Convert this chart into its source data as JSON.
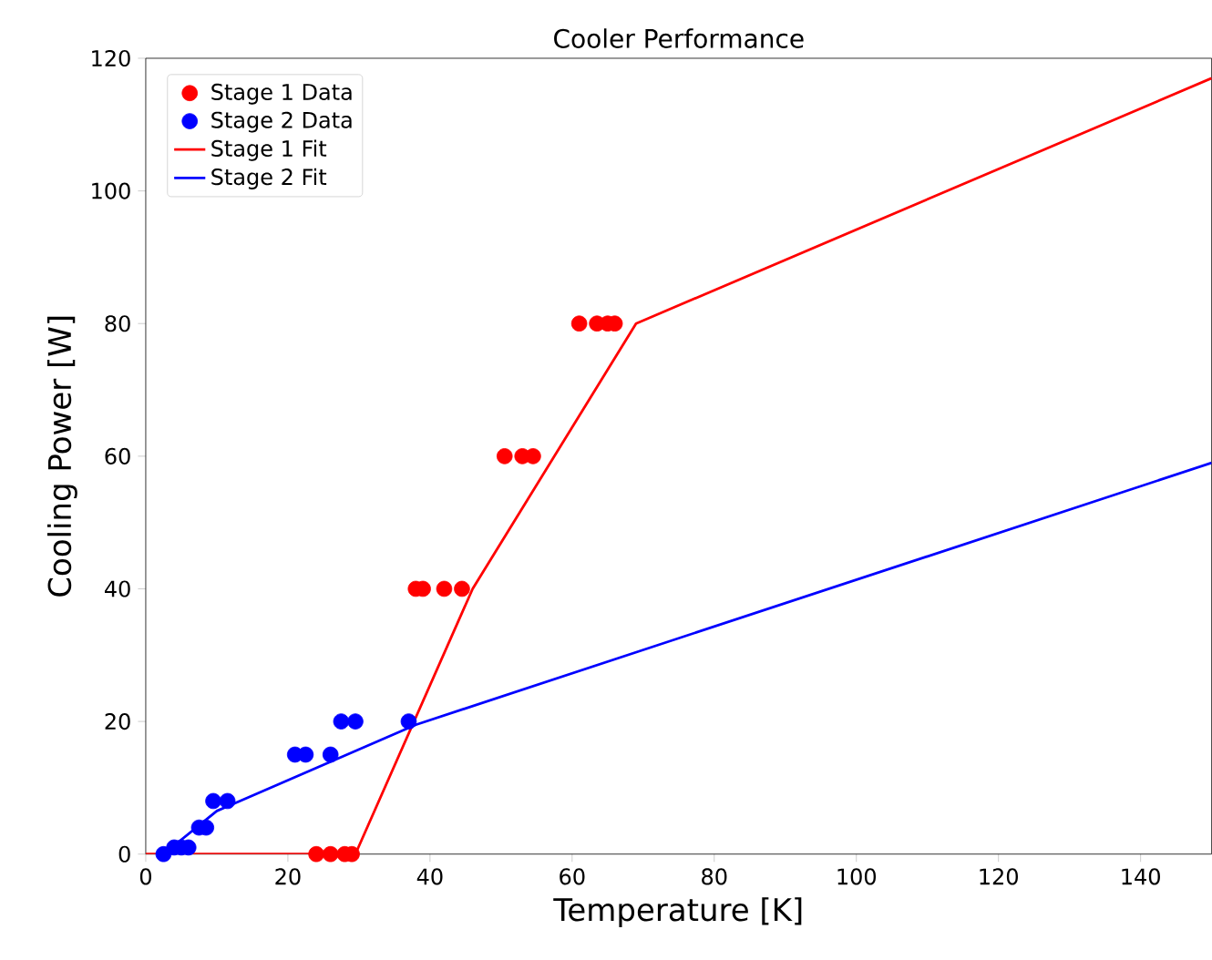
{
  "chart_data": {
    "type": "scatter",
    "title": "Cooler Performance",
    "xlabel": "Temperature [K]",
    "ylabel": "Cooling Power [W]",
    "xlim": [
      0,
      150
    ],
    "ylim": [
      0,
      120
    ],
    "xticks": [
      0,
      20,
      40,
      60,
      80,
      100,
      120,
      140
    ],
    "yticks": [
      0,
      20,
      40,
      60,
      80,
      100,
      120
    ],
    "legend": "top left",
    "grid": false,
    "series": [
      {
        "name": "Stage 1 Data",
        "marker": "circle",
        "color": "#ff0000",
        "x": [
          24,
          26,
          28,
          29,
          38,
          39,
          42,
          44.5,
          50.5,
          53,
          54.5,
          61,
          63.5,
          65,
          66
        ],
        "values": [
          0,
          0,
          0,
          0,
          40,
          40,
          40,
          40,
          60,
          60,
          60,
          80,
          80,
          80,
          80
        ]
      },
      {
        "name": "Stage 2 Data",
        "marker": "circle",
        "color": "#0000ff",
        "x": [
          2.5,
          4,
          5,
          6,
          7.5,
          8.5,
          9.5,
          11.5,
          21,
          22.5,
          26,
          27.5,
          29.5,
          37
        ],
        "values": [
          0,
          1,
          1,
          1,
          4,
          4,
          8,
          8,
          15,
          15,
          15,
          20,
          20,
          20
        ]
      },
      {
        "name": "Stage 1 Fit",
        "type": "line",
        "marker": "none",
        "color": "#ff0000",
        "x": [
          0,
          29.5,
          46,
          69,
          150
        ],
        "values": [
          0,
          0,
          40,
          80,
          117
        ]
      },
      {
        "name": "Stage 2 Fit",
        "type": "line",
        "marker": "none",
        "color": "#0000ff",
        "x": [
          2.5,
          10,
          38,
          150
        ],
        "values": [
          0,
          6.5,
          19.5,
          59
        ]
      }
    ]
  }
}
